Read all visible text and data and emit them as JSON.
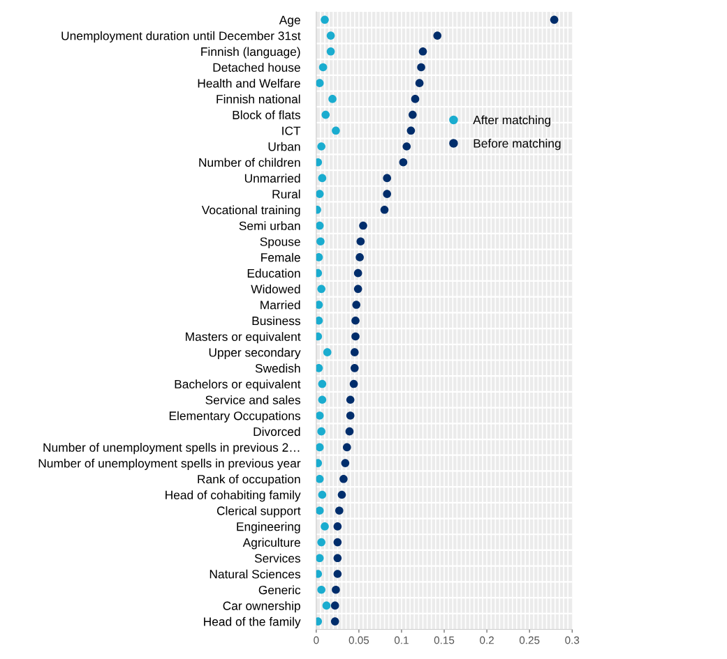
{
  "chart_data": {
    "type": "scatter",
    "orientation": "horizontal",
    "categories": [
      "Age",
      "Unemployment duration until December 31st",
      "Finnish (language)",
      "Detached house",
      "Health and Welfare",
      "Finnish national",
      "Block of flats",
      "ICT",
      "Urban",
      "Number of children",
      "Unmarried",
      "Rural",
      "Vocational training",
      "Semi urban",
      "Spouse",
      "Female",
      "Education",
      "Widowed",
      "Married",
      "Business",
      "Masters or equivalent",
      "Upper secondary",
      "Swedish",
      "Bachelors or equivalent",
      "Service and sales",
      "Elementary Occupations",
      "Divorced",
      "Number of unemployment spells in previous 2…",
      "Number of unemployment spells in previous year",
      "Rank of occupation",
      "Head of cohabiting family",
      "Clerical support",
      "Engineering",
      "Agriculture",
      "Services",
      "Natural Sciences",
      "Generic",
      "Car ownership",
      "Head of the family"
    ],
    "series": [
      {
        "name": "After matching",
        "color": "#1aaccf",
        "values": [
          0.01,
          0.017,
          0.017,
          0.008,
          0.004,
          0.019,
          0.011,
          0.023,
          0.006,
          0.002,
          0.007,
          0.004,
          0.001,
          0.004,
          0.005,
          0.003,
          0.002,
          0.006,
          0.003,
          0.003,
          0.002,
          0.013,
          0.003,
          0.007,
          0.007,
          0.004,
          0.006,
          0.004,
          0.002,
          0.004,
          0.007,
          0.004,
          0.01,
          0.006,
          0.004,
          0.002,
          0.006,
          0.012,
          0.002
        ]
      },
      {
        "name": "Before matching",
        "color": "#002d6b",
        "values": [
          0.279,
          0.142,
          0.125,
          0.123,
          0.121,
          0.116,
          0.113,
          0.111,
          0.106,
          0.102,
          0.083,
          0.083,
          0.08,
          0.055,
          0.052,
          0.051,
          0.049,
          0.049,
          0.047,
          0.046,
          0.046,
          0.045,
          0.045,
          0.044,
          0.04,
          0.04,
          0.039,
          0.036,
          0.034,
          0.032,
          0.03,
          0.027,
          0.025,
          0.025,
          0.025,
          0.025,
          0.023,
          0.022,
          0.022
        ]
      }
    ],
    "xlim": [
      0,
      0.3
    ],
    "xticks": [
      0,
      0.05,
      0.1,
      0.15,
      0.2,
      0.25,
      0.3
    ],
    "grid": true,
    "legend": "top right",
    "marker": "circle"
  }
}
